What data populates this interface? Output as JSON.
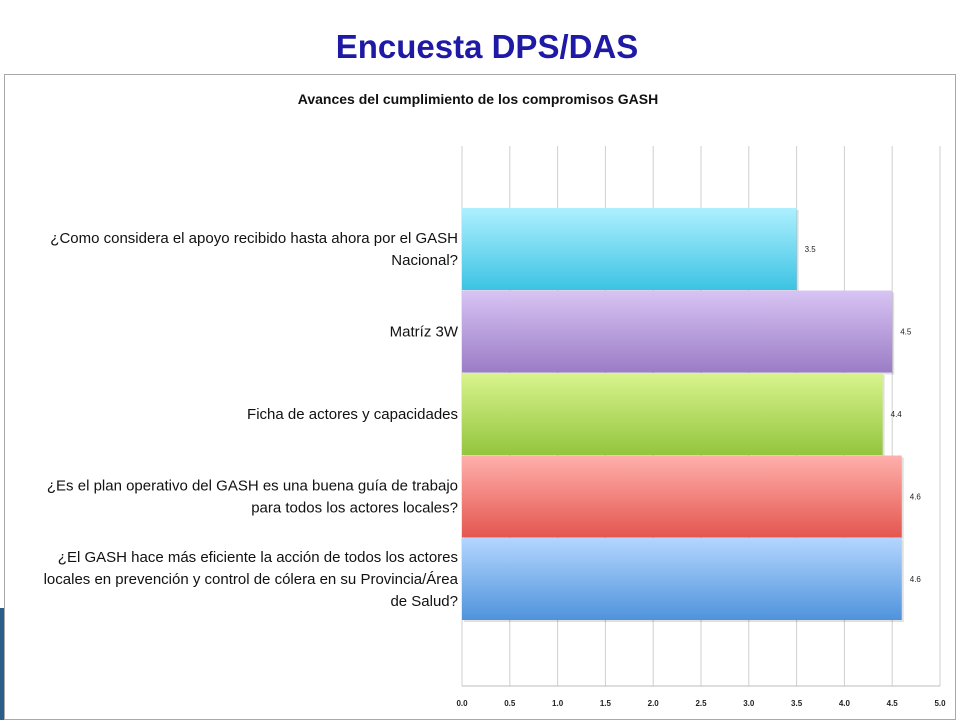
{
  "slide": {
    "title": "Encuesta DPS/DAS"
  },
  "chart_data": {
    "type": "bar",
    "orientation": "horizontal",
    "title": "Avances del cumplimiento de los compromisos GASH",
    "categories": [
      [
        "¿Como considera el apoyo recibido hasta ahora por el GASH",
        "Nacional?"
      ],
      [
        "Matríz 3W"
      ],
      [
        "Ficha de actores y capacidades"
      ],
      [
        "¿Es el plan operativo del GASH es una buena guía de trabajo",
        "para todos los actores locales?"
      ],
      [
        "¿El GASH hace más eficiente la acción de todos los actores",
        "locales en prevención y control de cólera en su  Provincia/Área",
        "de Salud?"
      ]
    ],
    "values": [
      3.5,
      4.5,
      4.4,
      4.6,
      4.6
    ],
    "value_labels": [
      "3.5",
      "4.5",
      "4.4",
      "4.6",
      "4.6"
    ],
    "bar_colors": [
      [
        "#aef0ff",
        "#3cc3e3"
      ],
      [
        "#d8c4f4",
        "#9b7cc6"
      ],
      [
        "#d9f48e",
        "#93c53e"
      ],
      [
        "#ffb0ac",
        "#e4564f"
      ],
      [
        "#b4d6ff",
        "#4f93dc"
      ]
    ],
    "xlim": [
      0,
      5.0
    ],
    "xticks": [
      "0.0",
      "0.5",
      "1.0",
      "1.5",
      "2.0",
      "2.5",
      "3.0",
      "3.5",
      "4.0",
      "4.5",
      "5.0"
    ],
    "grid": true,
    "legend": "none"
  }
}
